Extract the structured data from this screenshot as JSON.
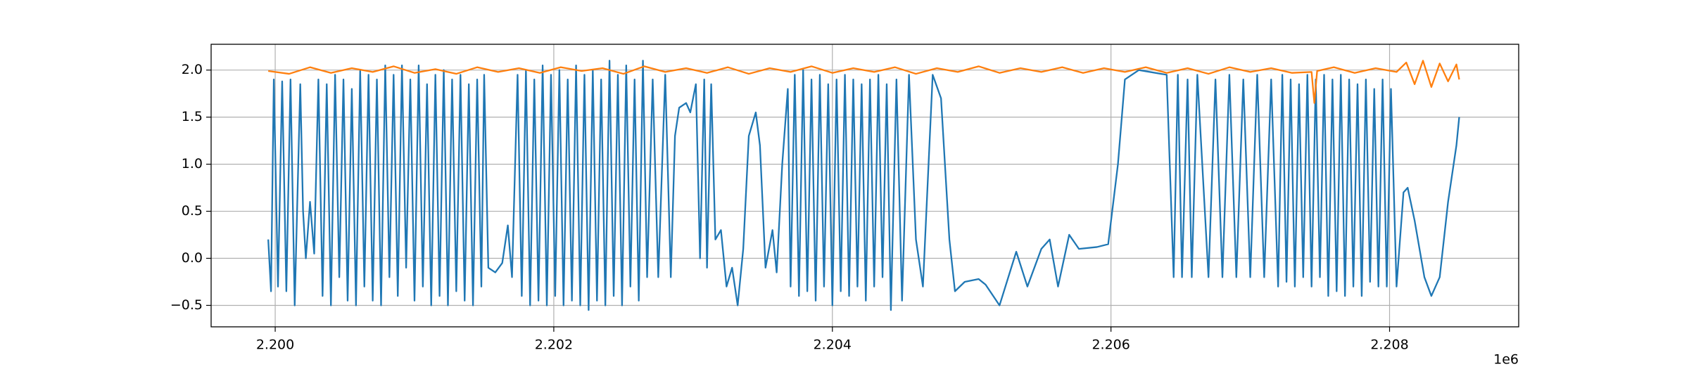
{
  "chart_data": {
    "type": "line",
    "offset_label": "1e6",
    "xlim": [
      2.19954,
      2.208927
    ],
    "ylim": [
      -0.728,
      2.274
    ],
    "xticks": [
      {
        "value": 2.2,
        "label": "2.200"
      },
      {
        "value": 2.202,
        "label": "2.202"
      },
      {
        "value": 2.204,
        "label": "2.204"
      },
      {
        "value": 2.206,
        "label": "2.206"
      },
      {
        "value": 2.208,
        "label": "2.208"
      }
    ],
    "yticks": [
      {
        "value": -0.5,
        "label": "−0.5"
      },
      {
        "value": 0,
        "label": "0.0"
      },
      0.5,
      {
        "value": 1,
        "label": "1.0"
      },
      {
        "value": 1.5,
        "label": "1.5"
      },
      {
        "value": 2,
        "label": "2.0"
      }
    ],
    "grid": true,
    "series": [
      {
        "color": "#1f77b4",
        "x": [
          2.19995,
          2.19997,
          2.19999,
          2.20002,
          2.20005,
          2.20008,
          2.20011,
          2.20014,
          2.20018,
          2.2002,
          2.20022,
          2.20025,
          2.20028,
          2.20031,
          2.20034,
          2.20037,
          2.2004,
          2.20043,
          2.20046,
          2.20049,
          2.20052,
          2.20055,
          2.20058,
          2.20061,
          2.20064,
          2.20067,
          2.2007,
          2.20073,
          2.20076,
          2.20079,
          2.20082,
          2.20085,
          2.20088,
          2.20091,
          2.20094,
          2.20097,
          2.201,
          2.20103,
          2.20106,
          2.20109,
          2.20112,
          2.20115,
          2.20118,
          2.20121,
          2.20124,
          2.20127,
          2.2013,
          2.20133,
          2.20136,
          2.20139,
          2.20142,
          2.20145,
          2.20148,
          2.2015,
          2.20153,
          2.20158,
          2.20163,
          2.20167,
          2.2017,
          2.20174,
          2.20177,
          2.2018,
          2.20183,
          2.20186,
          2.20189,
          2.20192,
          2.20195,
          2.20198,
          2.20201,
          2.20204,
          2.20207,
          2.2021,
          2.20213,
          2.20216,
          2.20219,
          2.20222,
          2.20225,
          2.20228,
          2.20231,
          2.20234,
          2.20237,
          2.2024,
          2.20243,
          2.20246,
          2.20249,
          2.20252,
          2.20255,
          2.20258,
          2.20261,
          2.20264,
          2.20267,
          2.20271,
          2.20275,
          2.2028,
          2.20284,
          2.20287,
          2.2029,
          2.20295,
          2.20298,
          2.20302,
          2.20305,
          2.20308,
          2.2031,
          2.20313,
          2.20316,
          2.2032,
          2.20324,
          2.20328,
          2.20332,
          2.20336,
          2.2034,
          2.20345,
          2.20348,
          2.20352,
          2.20357,
          2.2036,
          2.20364,
          2.20368,
          2.2037,
          2.20373,
          2.20376,
          2.20379,
          2.20382,
          2.20385,
          2.20388,
          2.20391,
          2.20394,
          2.20397,
          2.204,
          2.20403,
          2.20406,
          2.20409,
          2.20412,
          2.20415,
          2.20418,
          2.20421,
          2.20424,
          2.20427,
          2.2043,
          2.20433,
          2.20436,
          2.20439,
          2.20442,
          2.20446,
          2.2045,
          2.20455,
          2.2046,
          2.20465,
          2.20472,
          2.20478,
          2.20484,
          2.20488,
          2.20495,
          2.20505,
          2.2051,
          2.2052,
          2.20532,
          2.2054,
          2.2055,
          2.20556,
          2.20562,
          2.2057,
          2.20577,
          2.2059,
          2.20598,
          2.20605,
          2.2061,
          2.2062,
          2.2064,
          2.20645,
          2.20648,
          2.20651,
          2.20655,
          2.20658,
          2.20662,
          2.2067,
          2.20675,
          2.2068,
          2.20685,
          2.2069,
          2.20695,
          2.207,
          2.20705,
          2.2071,
          2.20715,
          2.2072,
          2.20723,
          2.20726,
          2.20729,
          2.20732,
          2.20735,
          2.20738,
          2.20741,
          2.20744,
          2.20747,
          2.2075,
          2.20753,
          2.20756,
          2.20759,
          2.20762,
          2.20765,
          2.20768,
          2.20771,
          2.20774,
          2.20777,
          2.2078,
          2.20783,
          2.20786,
          2.20789,
          2.20792,
          2.20795,
          2.20798,
          2.20801,
          2.20805,
          2.2081,
          2.20813,
          2.20818,
          2.20825,
          2.2083,
          2.20836,
          2.20842,
          2.20848,
          2.2085
        ],
        "values": [
          0.2,
          -0.35,
          1.9,
          -0.3,
          1.88,
          -0.35,
          1.9,
          -0.5,
          1.85,
          0.5,
          0.0,
          0.6,
          0.05,
          1.9,
          -0.4,
          1.85,
          -0.5,
          1.95,
          -0.2,
          1.9,
          -0.45,
          1.8,
          -0.5,
          2.0,
          -0.3,
          1.95,
          -0.45,
          1.9,
          -0.5,
          2.05,
          -0.2,
          1.95,
          -0.4,
          2.05,
          -0.1,
          1.9,
          -0.45,
          2.05,
          -0.3,
          1.85,
          -0.5,
          1.95,
          -0.4,
          2.0,
          -0.5,
          1.9,
          -0.35,
          1.95,
          -0.45,
          1.85,
          -0.5,
          1.9,
          -0.3,
          1.95,
          -0.1,
          -0.15,
          -0.05,
          0.35,
          -0.2,
          1.95,
          -0.4,
          2.0,
          -0.5,
          1.9,
          -0.45,
          2.05,
          -0.5,
          1.95,
          -0.4,
          2.0,
          -0.5,
          1.9,
          -0.45,
          2.05,
          -0.5,
          1.95,
          -0.55,
          2.0,
          -0.45,
          1.9,
          -0.5,
          2.1,
          -0.4,
          1.95,
          -0.5,
          2.05,
          -0.3,
          1.9,
          -0.45,
          2.1,
          -0.2,
          1.9,
          -0.2,
          1.95,
          -0.2,
          1.3,
          1.6,
          1.65,
          1.55,
          1.85,
          0.0,
          1.9,
          -0.1,
          1.85,
          0.2,
          0.3,
          -0.3,
          -0.1,
          -0.5,
          0.1,
          1.3,
          1.55,
          1.2,
          -0.1,
          0.3,
          -0.15,
          1.0,
          1.8,
          -0.3,
          1.95,
          -0.4,
          2.0,
          -0.35,
          1.9,
          -0.45,
          1.95,
          -0.3,
          1.85,
          -0.5,
          1.9,
          -0.35,
          1.95,
          -0.4,
          1.9,
          -0.3,
          1.85,
          -0.45,
          1.9,
          -0.3,
          1.95,
          -0.2,
          1.85,
          -0.55,
          1.9,
          -0.45,
          1.95,
          0.2,
          -0.3,
          1.95,
          1.7,
          0.2,
          -0.35,
          -0.25,
          -0.22,
          -0.28,
          -0.5,
          0.07,
          -0.3,
          0.1,
          0.2,
          -0.3,
          0.25,
          0.1,
          0.12,
          0.15,
          1.0,
          1.9,
          2.0,
          1.95,
          -0.2,
          1.95,
          -0.2,
          1.9,
          -0.2,
          1.95,
          -0.2,
          1.9,
          -0.2,
          1.95,
          -0.2,
          1.9,
          -0.2,
          1.95,
          -0.2,
          1.9,
          -0.3,
          1.95,
          -0.25,
          1.9,
          -0.3,
          1.85,
          -0.2,
          1.95,
          -0.3,
          1.9,
          -0.2,
          1.95,
          -0.4,
          1.9,
          -0.35,
          1.95,
          -0.4,
          1.9,
          -0.3,
          1.85,
          -0.4,
          1.9,
          -0.25,
          1.8,
          -0.3,
          1.9,
          -0.3,
          1.8,
          -0.3,
          0.7,
          0.75,
          0.4,
          -0.2,
          -0.4,
          -0.2,
          0.6,
          1.2,
          1.5
        ]
      },
      {
        "color": "#ff7f0e",
        "x": [
          2.19995,
          2.2001,
          2.20025,
          2.2004,
          2.20055,
          2.2007,
          2.20085,
          2.201,
          2.20115,
          2.2013,
          2.20145,
          2.2016,
          2.20175,
          2.2019,
          2.20205,
          2.2022,
          2.20235,
          2.2025,
          2.20265,
          2.2028,
          2.20295,
          2.2031,
          2.20325,
          2.2034,
          2.20355,
          2.2037,
          2.20385,
          2.204,
          2.20415,
          2.2043,
          2.20445,
          2.2046,
          2.20475,
          2.2049,
          2.20505,
          2.2052,
          2.20535,
          2.2055,
          2.20565,
          2.2058,
          2.20595,
          2.2061,
          2.20625,
          2.2064,
          2.20655,
          2.2067,
          2.20685,
          2.207,
          2.20715,
          2.2073,
          2.20744,
          2.20746,
          2.20748,
          2.2076,
          2.20775,
          2.2079,
          2.20805,
          2.20812,
          2.20818,
          2.20824,
          2.2083,
          2.20836,
          2.20842,
          2.20848,
          2.2085
        ],
        "values": [
          1.99,
          1.96,
          2.03,
          1.97,
          2.02,
          1.98,
          2.04,
          1.97,
          2.01,
          1.96,
          2.03,
          1.98,
          2.02,
          1.97,
          2.03,
          1.99,
          2.02,
          1.96,
          2.04,
          1.98,
          2.02,
          1.97,
          2.03,
          1.96,
          2.02,
          1.98,
          2.04,
          1.97,
          2.02,
          1.98,
          2.03,
          1.96,
          2.02,
          1.98,
          2.04,
          1.97,
          2.02,
          1.98,
          2.03,
          1.97,
          2.02,
          1.98,
          2.03,
          1.97,
          2.02,
          1.96,
          2.03,
          1.98,
          2.02,
          1.97,
          1.98,
          1.65,
          1.99,
          2.03,
          1.97,
          2.02,
          1.98,
          2.08,
          1.85,
          2.1,
          1.82,
          2.07,
          1.88,
          2.06,
          1.9
        ]
      }
    ]
  }
}
